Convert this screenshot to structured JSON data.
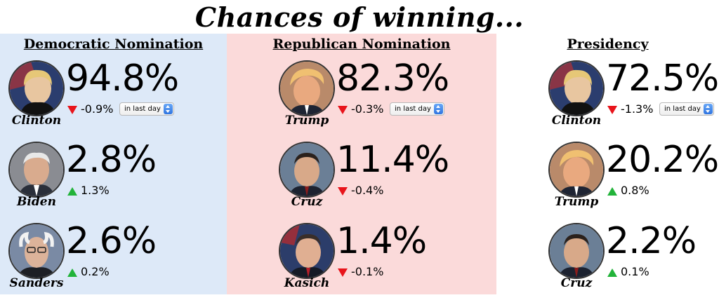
{
  "title": "Chances of winning...",
  "columns": [
    {
      "heading": "Democratic Nomination",
      "background": "#dde9f8",
      "candidates": [
        {
          "name": "Clinton",
          "percent": "94.8%",
          "change": "-0.9%",
          "direction": "down",
          "timeframe": "in last day"
        },
        {
          "name": "Biden",
          "percent": "2.8%",
          "change": "1.3%",
          "direction": "up"
        },
        {
          "name": "Sanders",
          "percent": "2.6%",
          "change": "0.2%",
          "direction": "up"
        }
      ]
    },
    {
      "heading": "Republican Nomination",
      "background": "#fbdada",
      "candidates": [
        {
          "name": "Trump",
          "percent": "82.3%",
          "change": "-0.3%",
          "direction": "down",
          "timeframe": "in last day"
        },
        {
          "name": "Cruz",
          "percent": "11.4%",
          "change": "-0.4%",
          "direction": "down"
        },
        {
          "name": "Kasich",
          "percent": "1.4%",
          "change": "-0.1%",
          "direction": "down"
        }
      ]
    },
    {
      "heading": "Presidency",
      "background": "#ffffff",
      "candidates": [
        {
          "name": "Clinton",
          "percent": "72.5%",
          "change": "-1.3%",
          "direction": "down",
          "timeframe": "in last day"
        },
        {
          "name": "Trump",
          "percent": "20.2%",
          "change": "0.8%",
          "direction": "up"
        },
        {
          "name": "Cruz",
          "percent": "2.2%",
          "change": "0.1%",
          "direction": "up"
        }
      ]
    }
  ],
  "colors": {
    "down_arrow": "#e8141b",
    "up_arrow": "#22b33a",
    "dem_bg": "#dde9f8",
    "rep_bg": "#fbdada"
  },
  "icons": {
    "avatar": "candidate-photo",
    "down": "red-down-triangle",
    "up": "green-up-triangle",
    "select": "select-stepper-icon"
  }
}
